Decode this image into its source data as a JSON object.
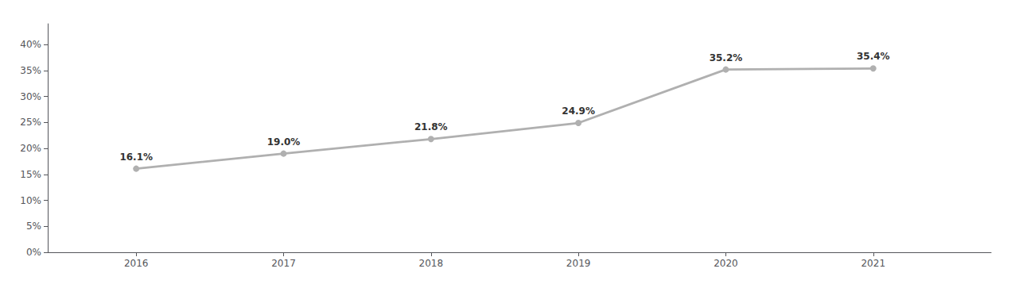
{
  "chart_data": {
    "type": "line",
    "x": [
      2016,
      2017,
      2018,
      2019,
      2020,
      2021
    ],
    "values": [
      0.161,
      0.19,
      0.218,
      0.249,
      0.352,
      0.354
    ],
    "value_labels": [
      "16.1%",
      "19.0%",
      "21.8%",
      "24.9%",
      "35.2%",
      "35.4%"
    ],
    "data_labels": true,
    "color": "#b0b0b0",
    "marker": "circle",
    "xlim": [
      2015.4,
      2021.8
    ],
    "xticks": [
      2016,
      2017,
      2018,
      2019,
      2020,
      2021
    ],
    "ylim": [
      0,
      0.44
    ],
    "yticks": [
      {
        "value": 0.0,
        "label": "0%"
      },
      {
        "value": 0.05,
        "label": "5%"
      },
      {
        "value": 0.1,
        "label": "10%"
      },
      {
        "value": 0.15,
        "label": "15%"
      },
      {
        "value": 0.2,
        "label": "20%"
      },
      {
        "value": 0.25,
        "label": "25%"
      },
      {
        "value": 0.3,
        "label": "30%"
      },
      {
        "value": 0.35,
        "label": "35%"
      },
      {
        "value": 0.4,
        "label": "40%"
      }
    ],
    "grid": false
  }
}
